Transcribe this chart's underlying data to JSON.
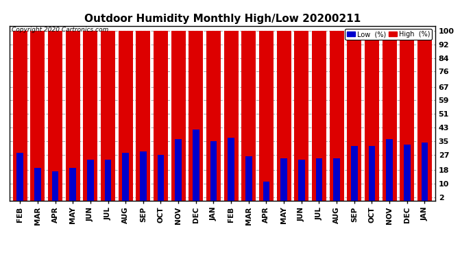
{
  "title": "Outdoor Humidity Monthly High/Low 20200211",
  "copyright": "Copyright 2020 Cartronics.com",
  "categories": [
    "FEB",
    "MAR",
    "APR",
    "MAY",
    "JUN",
    "JUL",
    "AUG",
    "SEP",
    "OCT",
    "NOV",
    "DEC",
    "JAN",
    "FEB",
    "MAR",
    "APR",
    "MAY",
    "JUN",
    "JUL",
    "AUG",
    "SEP",
    "OCT",
    "NOV",
    "DEC",
    "JAN"
  ],
  "high_values": [
    100,
    100,
    100,
    100,
    100,
    100,
    100,
    100,
    100,
    100,
    100,
    100,
    100,
    100,
    100,
    100,
    100,
    100,
    100,
    100,
    100,
    100,
    100,
    100
  ],
  "low_values": [
    28,
    19,
    17,
    19,
    24,
    24,
    28,
    29,
    27,
    36,
    42,
    35,
    37,
    26,
    11,
    25,
    24,
    25,
    25,
    32,
    32,
    36,
    33,
    34
  ],
  "high_color": "#dd0000",
  "low_color": "#0000cc",
  "bg_color": "#ffffff",
  "yticks": [
    2,
    10,
    18,
    27,
    35,
    43,
    51,
    59,
    67,
    76,
    84,
    92,
    100
  ],
  "ylim": [
    0,
    103
  ],
  "grid_color": "#aaaaaa",
  "title_fontsize": 11,
  "xlabel_fontsize": 7.5,
  "ylabel_fontsize": 8,
  "high_bar_width": 0.82,
  "low_bar_width": 0.38
}
